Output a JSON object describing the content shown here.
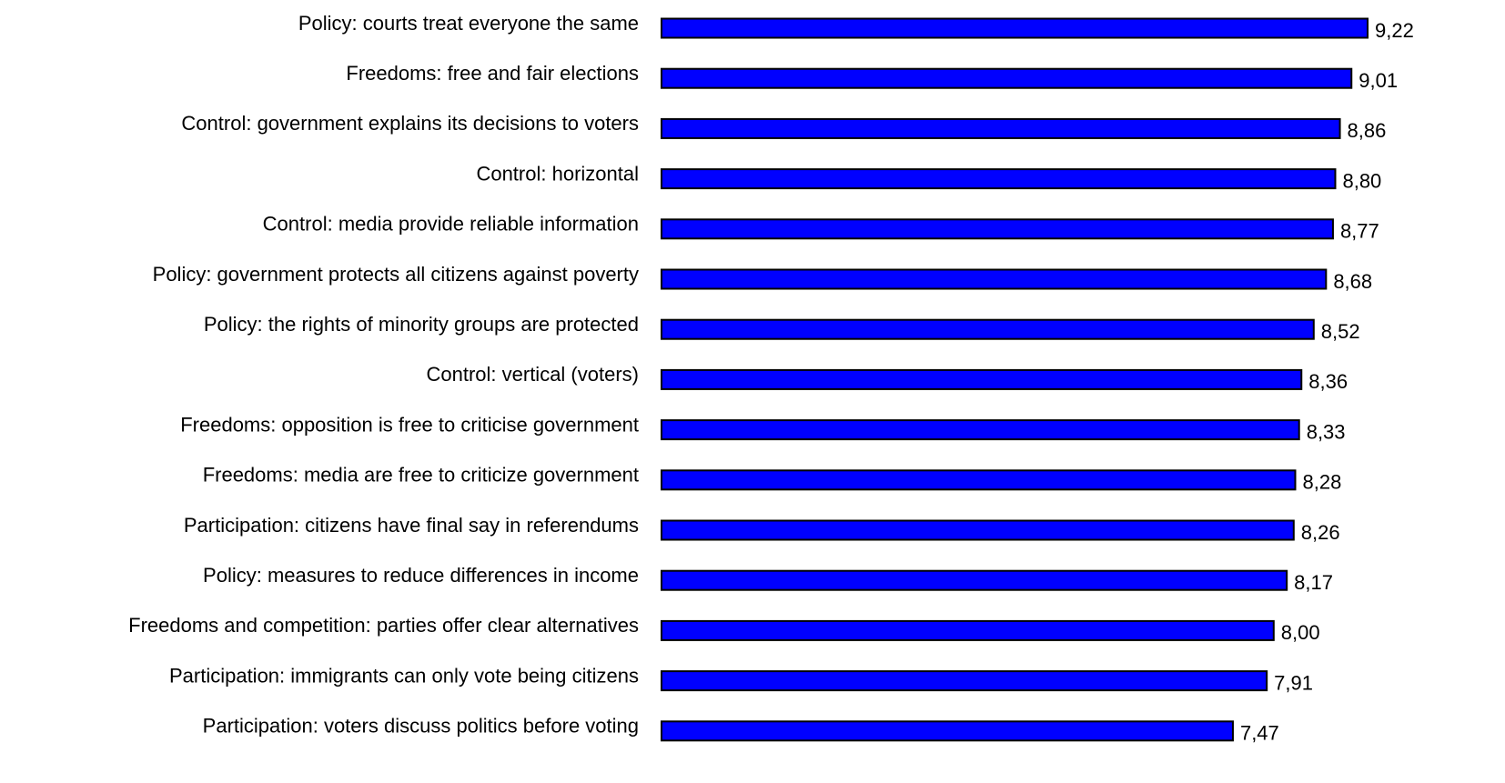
{
  "chart_data": {
    "type": "bar",
    "orientation": "horizontal",
    "color": "#0000ff",
    "categories": [
      "Policy: courts treat everyone the same",
      "Freedoms: free and fair elections",
      "Control: government explains its decisions to voters",
      "Control: horizontal",
      "Control: media provide reliable information",
      "Policy: government protects all citizens against poverty",
      "Policy: the rights of minority groups are protected",
      "Control: vertical (voters)",
      "Freedoms: opposition is free to criticise government",
      "Freedoms: media are free to criticize government",
      "Participation: citizens have final say in referendums",
      "Policy: measures to reduce differences in income",
      "Freedoms and competition: parties offer clear alternatives",
      "Participation: immigrants can only vote being citizens",
      "Participation: voters discuss politics before voting"
    ],
    "values": [
      9.22,
      9.01,
      8.86,
      8.8,
      8.77,
      8.68,
      8.52,
      8.36,
      8.33,
      8.28,
      8.26,
      8.17,
      8.0,
      7.91,
      7.47
    ],
    "value_labels": [
      "9,22",
      "9,01",
      "8,86",
      "8,80",
      "8,77",
      "8,68",
      "8,52",
      "8,36",
      "8,33",
      "8,28",
      "8,26",
      "8,17",
      "8,00",
      "7,91",
      "7,47"
    ]
  }
}
